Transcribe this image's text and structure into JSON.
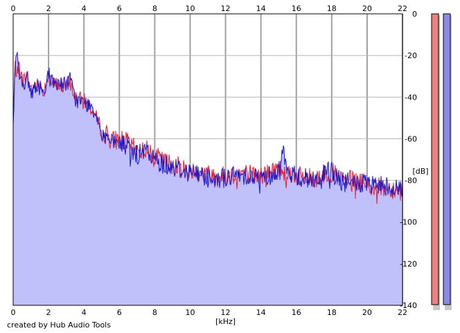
{
  "chart_data": {
    "type": "area",
    "xlabel": "[kHz]",
    "ylabel": "[dB]",
    "xlim": [
      0,
      22
    ],
    "ylim": [
      -140,
      0
    ],
    "x_ticks": [
      0,
      2,
      4,
      6,
      8,
      10,
      12,
      14,
      16,
      18,
      20,
      22
    ],
    "y_ticks": [
      0,
      -20,
      -40,
      -60,
      -80,
      -100,
      -120,
      -140
    ],
    "x_tick_labels": [
      "0",
      "2",
      "4",
      "6",
      "8",
      "10",
      "12",
      "14",
      "16",
      "18",
      "20",
      "22"
    ],
    "y_tick_labels": [
      "0",
      "-20",
      "-40",
      "-60",
      "-80",
      "-100",
      "-120",
      "-140"
    ],
    "grid": true,
    "x_ticks_position": "top-and-bottom",
    "y_ticks_position": "right",
    "series": [
      {
        "color": "#e8202a",
        "x": [
          0,
          0.1,
          0.2,
          0.3,
          0.5,
          0.8,
          1.0,
          1.5,
          1.7,
          2.0,
          2.2,
          2.5,
          3.0,
          3.2,
          3.5,
          4.0,
          4.4,
          4.8,
          5.0,
          5.3,
          5.6,
          6.0,
          6.5,
          7.0,
          7.5,
          8.0,
          8.5,
          9.0,
          9.5,
          10.0,
          11.0,
          12.0,
          13.0,
          14.0,
          15.0,
          15.5,
          16.0,
          17.0,
          18.0,
          18.5,
          19.0,
          20.0,
          20.4,
          21.0,
          21.5,
          22.0
        ],
        "y": [
          -52,
          -25,
          -28,
          -24,
          -32,
          -30,
          -36,
          -34,
          -38,
          -28,
          -34,
          -34,
          -35,
          -32,
          -40,
          -42,
          -45,
          -52,
          -56,
          -58,
          -61,
          -60,
          -62,
          -66,
          -65,
          -68,
          -71,
          -72,
          -74,
          -75,
          -77,
          -78,
          -76,
          -78,
          -74,
          -76,
          -78,
          -79,
          -76,
          -80,
          -80,
          -82,
          -84,
          -83,
          -84,
          -85
        ]
      },
      {
        "color": "#1818d0",
        "x": [
          0,
          0.1,
          0.2,
          0.25,
          0.3,
          0.5,
          0.8,
          1.0,
          1.5,
          1.7,
          2.0,
          2.2,
          2.5,
          3.0,
          3.2,
          3.5,
          4.0,
          4.4,
          4.8,
          5.0,
          5.3,
          5.6,
          6.0,
          6.5,
          7.0,
          7.5,
          8.0,
          8.5,
          9.0,
          9.5,
          10.0,
          11.0,
          12.0,
          13.0,
          14.0,
          15.0,
          15.2,
          15.5,
          16.0,
          17.0,
          18.0,
          18.5,
          19.0,
          20.0,
          20.4,
          21.0,
          21.5,
          22.0
        ],
        "y": [
          -55,
          -25,
          -22,
          -12,
          -28,
          -33,
          -32,
          -37,
          -35,
          -38,
          -28,
          -33,
          -33,
          -34,
          -31,
          -41,
          -43,
          -44,
          -50,
          -57,
          -59,
          -63,
          -62,
          -64,
          -68,
          -66,
          -70,
          -72,
          -73,
          -75,
          -76,
          -78,
          -79,
          -77,
          -79,
          -76,
          -62,
          -77,
          -78,
          -80,
          -75,
          -81,
          -81,
          -82,
          -83,
          -82,
          -84,
          -84
        ]
      }
    ],
    "fill_color": "#c0c0fa",
    "legend": "none",
    "meters": [
      "#f08080",
      "#8a8ae8"
    ]
  },
  "credit": "created by Hub Audio Tools"
}
